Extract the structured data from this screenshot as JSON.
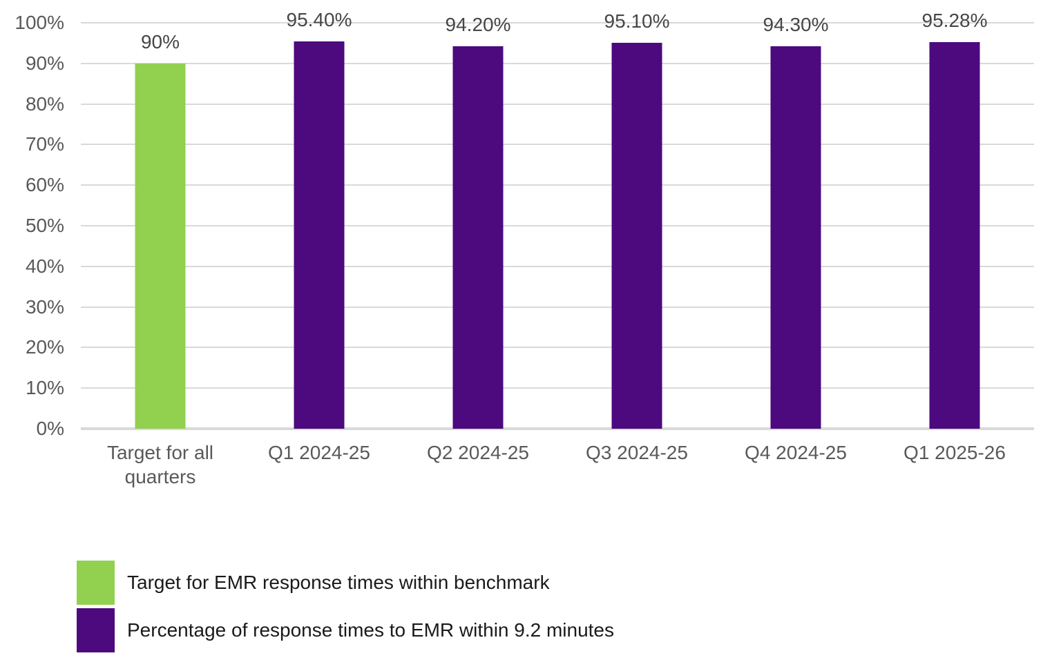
{
  "chart_data": {
    "type": "bar",
    "title": "",
    "xlabel": "",
    "ylabel": "",
    "ylim": [
      0,
      100
    ],
    "grid": true,
    "legend_position": "bottom-left",
    "y_ticks": [
      "100%",
      "90%",
      "80%",
      "70%",
      "60%",
      "50%",
      "40%",
      "30%",
      "20%",
      "10%",
      "0%"
    ],
    "categories": [
      "Target for all quarters",
      "Q1 2024-25",
      "Q2 2024-25",
      "Q3 2024-25",
      "Q4 2024-25",
      "Q1 2025-26"
    ],
    "values": [
      90,
      95.4,
      94.2,
      95.1,
      94.3,
      95.28
    ],
    "data_labels": [
      "90%",
      "95.40%",
      "94.20%",
      "95.10%",
      "94.30%",
      "95.28%"
    ],
    "series_colors": [
      "#92d050",
      "#4c0a7e",
      "#4c0a7e",
      "#4c0a7e",
      "#4c0a7e",
      "#4c0a7e"
    ],
    "legend": [
      {
        "label": "Target for EMR response times within benchmark",
        "color": "#92d050"
      },
      {
        "label": "Percentage of response times to EMR within 9.2 minutes",
        "color": "#4c0a7e"
      }
    ],
    "colors": {
      "target_green": "#92d050",
      "series_purple": "#4c0a7e",
      "gridline": "#d9d9d9",
      "axis_text": "#595959",
      "data_label_text": "#464646",
      "legend_text": "#1a1a1a",
      "background": "#ffffff"
    }
  }
}
